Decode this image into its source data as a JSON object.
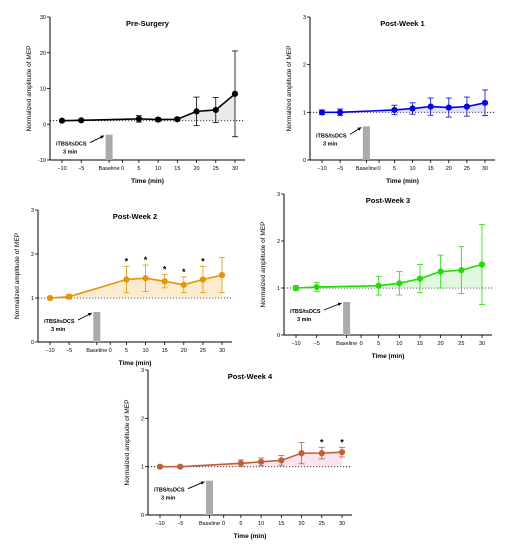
{
  "chart_data": [
    {
      "type": "line",
      "title": "Pre-Surgery",
      "xlabel": "Time (min)",
      "ylabel": "Normalized amplitude of  MEP",
      "x_tick_labels": [
        "-10",
        "-5",
        "Baseline",
        "0",
        "5",
        "10",
        "15",
        "20",
        "25",
        "30"
      ],
      "y_ticks": [
        "-10",
        "0",
        "10",
        "20",
        "30"
      ],
      "ylim": [
        -10,
        30
      ],
      "reference_line": 1,
      "annotation": {
        "line1": "iTBS/tsDCS",
        "line2": "3 min"
      },
      "series": [
        {
          "color": "#000000",
          "shade": "#d9d9d9",
          "x": [
            -10,
            -5,
            5,
            10,
            15,
            20,
            25,
            30
          ],
          "y": [
            1.0,
            1.1,
            1.5,
            1.3,
            1.4,
            3.6,
            4.0,
            8.5
          ],
          "err": [
            0.2,
            0.2,
            0.9,
            0.5,
            0.5,
            4.0,
            3.5,
            12.0
          ]
        }
      ],
      "significant": []
    },
    {
      "type": "line",
      "title": "Post-Week 1",
      "xlabel": "Time (min)",
      "ylabel": "Normalized amplitude of  MEP",
      "x_tick_labels": [
        "-10",
        "-5",
        "Baseline",
        "0",
        "5",
        "10",
        "15",
        "20",
        "25",
        "30"
      ],
      "y_ticks": [
        "0",
        "1",
        "2",
        "3"
      ],
      "ylim": [
        0,
        3
      ],
      "reference_line": 1,
      "annotation": {
        "line1": "iTBS/tsDCS",
        "line2": "3 min"
      },
      "series": [
        {
          "color": "#0000ee",
          "shade": "#c8ccf5",
          "x": [
            -10,
            -5,
            5,
            10,
            15,
            20,
            25,
            30
          ],
          "y": [
            1.0,
            1.0,
            1.05,
            1.08,
            1.12,
            1.1,
            1.12,
            1.2
          ],
          "err": [
            0.05,
            0.07,
            0.1,
            0.12,
            0.18,
            0.2,
            0.2,
            0.27
          ]
        }
      ],
      "significant": []
    },
    {
      "type": "line",
      "title": "Post-Week 2",
      "xlabel": "Time (min)",
      "ylabel": "Normalized amplitude of  MEP",
      "x_tick_labels": [
        "-10",
        "-5",
        "Baseline",
        "0",
        "5",
        "10",
        "15",
        "20",
        "25",
        "30"
      ],
      "y_ticks": [
        "0",
        "1",
        "2",
        "3"
      ],
      "ylim": [
        0,
        3
      ],
      "reference_line": 1,
      "annotation": {
        "line1": "iTBS/tsDCS",
        "line2": "3 min"
      },
      "series": [
        {
          "color": "#e69500",
          "shade": "#f7dcaa",
          "x": [
            -10,
            -5,
            5,
            10,
            15,
            20,
            25,
            30
          ],
          "y": [
            1.0,
            1.03,
            1.42,
            1.45,
            1.38,
            1.3,
            1.42,
            1.52
          ],
          "err": [
            0.03,
            0.05,
            0.3,
            0.3,
            0.15,
            0.18,
            0.3,
            0.4
          ]
        }
      ],
      "significant": [
        5,
        10,
        15,
        20,
        25
      ]
    },
    {
      "type": "line",
      "title": "Post-Week 3",
      "xlabel": "Time (min)",
      "ylabel": "Normalized amplitude of  MEP",
      "x_tick_labels": [
        "-10",
        "-5",
        "Baseline",
        "0",
        "5",
        "10",
        "15",
        "20",
        "25",
        "30"
      ],
      "y_ticks": [
        "0",
        "1",
        "2",
        "3"
      ],
      "ylim": [
        0,
        3
      ],
      "reference_line": 1,
      "annotation": {
        "line1": "iTBS/tsDCS",
        "line2": "3 min"
      },
      "series": [
        {
          "color": "#22dd00",
          "shade": "#c4f2c4",
          "x": [
            -10,
            -5,
            5,
            10,
            15,
            20,
            25,
            30
          ],
          "y": [
            1.0,
            1.02,
            1.05,
            1.1,
            1.2,
            1.35,
            1.38,
            1.5
          ],
          "err": [
            0.05,
            0.1,
            0.2,
            0.25,
            0.3,
            0.35,
            0.5,
            0.85
          ]
        }
      ],
      "significant": []
    },
    {
      "type": "line",
      "title": "Post-Week 4",
      "xlabel": "Time (min)",
      "ylabel": "Normalized amplitude of  MEP",
      "x_tick_labels": [
        "-10",
        "-5",
        "Baseline",
        "0",
        "5",
        "10",
        "15",
        "20",
        "25",
        "30"
      ],
      "y_ticks": [
        "0",
        "1",
        "2",
        "3"
      ],
      "ylim": [
        0,
        3
      ],
      "reference_line": 1,
      "annotation": {
        "line1": "iTBS/tsDCS",
        "line2": "3 min"
      },
      "series": [
        {
          "color": "#c0603a",
          "shade": "#f5d0dc",
          "x": [
            -10,
            -5,
            5,
            10,
            15,
            20,
            25,
            30
          ],
          "y": [
            1.0,
            1.0,
            1.07,
            1.1,
            1.13,
            1.28,
            1.28,
            1.3
          ],
          "err": [
            0.02,
            0.02,
            0.07,
            0.08,
            0.1,
            0.22,
            0.12,
            0.1
          ]
        }
      ],
      "significant": [
        25,
        30
      ]
    }
  ]
}
